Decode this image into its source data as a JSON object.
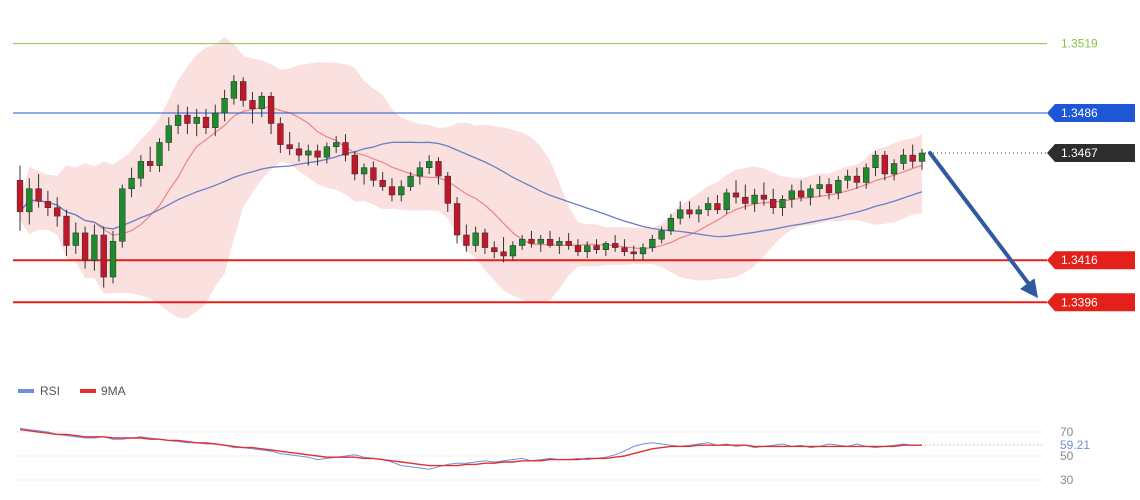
{
  "chart_data": [
    {
      "type": "candlestick",
      "title": "",
      "ylim": [
        1.336,
        1.3535
      ],
      "levels": [
        {
          "value": 1.3519,
          "label": "1.3519",
          "style": "green-line"
        },
        {
          "value": 1.3486,
          "label": "1.3486",
          "style": "blue-line"
        },
        {
          "value": 1.3467,
          "label": "1.3467",
          "style": "current-price"
        },
        {
          "value": 1.3416,
          "label": "1.3416",
          "style": "red-line"
        },
        {
          "value": 1.3396,
          "label": "1.3396",
          "style": "red-line"
        }
      ],
      "arrow": {
        "from_price": 1.3467,
        "to_price": 1.3398,
        "direction": "down"
      },
      "candles_ohlc": [
        [
          1.3454,
          1.3461,
          1.343,
          1.3439
        ],
        [
          1.3439,
          1.3455,
          1.3433,
          1.345
        ],
        [
          1.345,
          1.3457,
          1.3441,
          1.3444
        ],
        [
          1.3444,
          1.3449,
          1.3437,
          1.3441
        ],
        [
          1.3441,
          1.3446,
          1.3432,
          1.3437
        ],
        [
          1.3437,
          1.344,
          1.3418,
          1.3423
        ],
        [
          1.3423,
          1.3434,
          1.3419,
          1.3429
        ],
        [
          1.3429,
          1.3432,
          1.3412,
          1.3416
        ],
        [
          1.3416,
          1.3433,
          1.3411,
          1.3428
        ],
        [
          1.3428,
          1.3432,
          1.3403,
          1.3408
        ],
        [
          1.3408,
          1.343,
          1.3405,
          1.3425
        ],
        [
          1.3425,
          1.3452,
          1.3422,
          1.345
        ],
        [
          1.345,
          1.346,
          1.3446,
          1.3455
        ],
        [
          1.3455,
          1.3466,
          1.3451,
          1.3463
        ],
        [
          1.3463,
          1.347,
          1.3458,
          1.3461
        ],
        [
          1.3461,
          1.3474,
          1.3458,
          1.3472
        ],
        [
          1.3472,
          1.3484,
          1.3468,
          1.348
        ],
        [
          1.348,
          1.349,
          1.3476,
          1.3485
        ],
        [
          1.3485,
          1.3489,
          1.3476,
          1.3481
        ],
        [
          1.3481,
          1.3488,
          1.3475,
          1.3484
        ],
        [
          1.3484,
          1.3488,
          1.3476,
          1.3479
        ],
        [
          1.3479,
          1.349,
          1.3475,
          1.3486
        ],
        [
          1.3486,
          1.3497,
          1.3482,
          1.3493
        ],
        [
          1.3493,
          1.3504,
          1.349,
          1.3501
        ],
        [
          1.3501,
          1.3503,
          1.3489,
          1.3492
        ],
        [
          1.3492,
          1.3496,
          1.3481,
          1.3488
        ],
        [
          1.3488,
          1.3496,
          1.3484,
          1.3494
        ],
        [
          1.3494,
          1.3496,
          1.3476,
          1.3481
        ],
        [
          1.3481,
          1.3484,
          1.3467,
          1.3471
        ],
        [
          1.3471,
          1.3477,
          1.3466,
          1.3469
        ],
        [
          1.3469,
          1.3472,
          1.3463,
          1.3466
        ],
        [
          1.3466,
          1.3471,
          1.3461,
          1.3468
        ],
        [
          1.3468,
          1.3471,
          1.3461,
          1.3465
        ],
        [
          1.3465,
          1.3472,
          1.3462,
          1.347
        ],
        [
          1.347,
          1.3475,
          1.3467,
          1.3472
        ],
        [
          1.3472,
          1.3476,
          1.3463,
          1.3466
        ],
        [
          1.3466,
          1.3468,
          1.3454,
          1.3457
        ],
        [
          1.3457,
          1.3462,
          1.3452,
          1.346
        ],
        [
          1.346,
          1.3463,
          1.3451,
          1.3454
        ],
        [
          1.3454,
          1.3458,
          1.3449,
          1.3451
        ],
        [
          1.3451,
          1.3455,
          1.3444,
          1.3447
        ],
        [
          1.3447,
          1.3454,
          1.3444,
          1.3451
        ],
        [
          1.3451,
          1.3458,
          1.3449,
          1.3456
        ],
        [
          1.3456,
          1.3463,
          1.3452,
          1.346
        ],
        [
          1.346,
          1.3466,
          1.3457,
          1.3463
        ],
        [
          1.3463,
          1.3465,
          1.3452,
          1.3456
        ],
        [
          1.3456,
          1.3458,
          1.3439,
          1.3443
        ],
        [
          1.3443,
          1.3446,
          1.3424,
          1.3428
        ],
        [
          1.3428,
          1.3433,
          1.342,
          1.3423
        ],
        [
          1.3423,
          1.3432,
          1.342,
          1.3429
        ],
        [
          1.3429,
          1.3431,
          1.3419,
          1.3422
        ],
        [
          1.3422,
          1.3425,
          1.3417,
          1.342
        ],
        [
          1.342,
          1.3427,
          1.3415,
          1.3418
        ],
        [
          1.3418,
          1.3425,
          1.3416,
          1.3423
        ],
        [
          1.3423,
          1.3428,
          1.3421,
          1.3426
        ],
        [
          1.3426,
          1.343,
          1.3422,
          1.3424
        ],
        [
          1.3424,
          1.3428,
          1.342,
          1.3426
        ],
        [
          1.3426,
          1.343,
          1.3422,
          1.3423
        ],
        [
          1.3423,
          1.3427,
          1.3419,
          1.3425
        ],
        [
          1.3425,
          1.3429,
          1.3421,
          1.3423
        ],
        [
          1.3423,
          1.3426,
          1.3418,
          1.342
        ],
        [
          1.342,
          1.3425,
          1.3417,
          1.3423
        ],
        [
          1.3423,
          1.3426,
          1.3419,
          1.3421
        ],
        [
          1.3421,
          1.3425,
          1.3418,
          1.3424
        ],
        [
          1.3424,
          1.3428,
          1.342,
          1.3422
        ],
        [
          1.3422,
          1.3426,
          1.3418,
          1.342
        ],
        [
          1.342,
          1.3423,
          1.3416,
          1.3419
        ],
        [
          1.3419,
          1.3424,
          1.3416,
          1.3422
        ],
        [
          1.3422,
          1.3428,
          1.342,
          1.3426
        ],
        [
          1.3426,
          1.3432,
          1.3424,
          1.343
        ],
        [
          1.343,
          1.3438,
          1.3428,
          1.3436
        ],
        [
          1.3436,
          1.3444,
          1.3433,
          1.344
        ],
        [
          1.344,
          1.3444,
          1.3436,
          1.3438
        ],
        [
          1.3438,
          1.3442,
          1.3434,
          1.344
        ],
        [
          1.344,
          1.3446,
          1.3437,
          1.3443
        ],
        [
          1.3443,
          1.3447,
          1.3438,
          1.344
        ],
        [
          1.344,
          1.345,
          1.3438,
          1.3448
        ],
        [
          1.3448,
          1.3454,
          1.3443,
          1.3446
        ],
        [
          1.3446,
          1.3452,
          1.344,
          1.3443
        ],
        [
          1.3443,
          1.345,
          1.3439,
          1.3447
        ],
        [
          1.3447,
          1.3453,
          1.3442,
          1.3445
        ],
        [
          1.3445,
          1.345,
          1.3438,
          1.3441
        ],
        [
          1.3441,
          1.3447,
          1.3437,
          1.3445
        ],
        [
          1.3445,
          1.3452,
          1.3441,
          1.3449
        ],
        [
          1.3449,
          1.3454,
          1.3444,
          1.3446
        ],
        [
          1.3446,
          1.3452,
          1.3442,
          1.345
        ],
        [
          1.345,
          1.3456,
          1.3446,
          1.3452
        ],
        [
          1.3452,
          1.3455,
          1.3445,
          1.3448
        ],
        [
          1.3448,
          1.3456,
          1.3445,
          1.3454
        ],
        [
          1.3454,
          1.3459,
          1.345,
          1.3456
        ],
        [
          1.3456,
          1.346,
          1.345,
          1.3453
        ],
        [
          1.3453,
          1.3462,
          1.345,
          1.346
        ],
        [
          1.346,
          1.3468,
          1.3456,
          1.3466
        ],
        [
          1.3466,
          1.3468,
          1.3454,
          1.3457
        ],
        [
          1.3457,
          1.3464,
          1.3454,
          1.3462
        ],
        [
          1.3462,
          1.3469,
          1.3459,
          1.3466
        ],
        [
          1.3466,
          1.3471,
          1.346,
          1.3463
        ],
        [
          1.3463,
          1.3469,
          1.3459,
          1.3467
        ]
      ],
      "overlays": [
        {
          "name": "bollinger-bands",
          "color": "#f7c6c6"
        },
        {
          "name": "short-ma",
          "color": "#ef8a8a"
        },
        {
          "name": "long-ma",
          "color": "#6b7fc4"
        }
      ]
    },
    {
      "type": "line",
      "legend": [
        {
          "name": "RSI",
          "color": "#6f8fe0"
        },
        {
          "name": "9MA",
          "color": "#e03030"
        }
      ],
      "ylim": [
        25,
        80
      ],
      "y_ticks": [
        {
          "value": 70,
          "label": "70"
        },
        {
          "value": 50,
          "label": "50"
        },
        {
          "value": 30,
          "label": "30"
        }
      ],
      "current": {
        "value": 59.21,
        "label": "59.21"
      },
      "series": [
        {
          "name": "RSI",
          "values": [
            73,
            72,
            71,
            70,
            68,
            67,
            66,
            65,
            65,
            66,
            64,
            64,
            65,
            66,
            65,
            64,
            63,
            62,
            61,
            61,
            60,
            60,
            59,
            57,
            57,
            56,
            55,
            54,
            52,
            51,
            50,
            49,
            47,
            48,
            49,
            50,
            51,
            49,
            48,
            47,
            45,
            42,
            41,
            40,
            39,
            41,
            43,
            44,
            44,
            45,
            46,
            45,
            46,
            47,
            48,
            46,
            47,
            48,
            47,
            47,
            48,
            47,
            48,
            49,
            51,
            54,
            58,
            60,
            61,
            60,
            59,
            58,
            59,
            60,
            61,
            59,
            60,
            58,
            59,
            57,
            58,
            59,
            60,
            58,
            59,
            57,
            58,
            60,
            59,
            58,
            60,
            58,
            57,
            58,
            59,
            60,
            59,
            59.21
          ]
        },
        {
          "name": "9MA",
          "values": [
            72,
            71,
            70,
            69,
            68,
            68,
            67,
            66,
            66,
            66,
            65,
            65,
            65,
            65,
            64,
            64,
            63,
            63,
            62,
            61,
            61,
            60,
            59,
            58,
            57,
            57,
            56,
            55,
            54,
            53,
            52,
            51,
            50,
            49,
            49,
            49,
            49,
            48,
            48,
            47,
            46,
            45,
            44,
            43,
            42,
            42,
            42,
            42,
            43,
            43,
            44,
            44,
            45,
            45,
            46,
            46,
            46,
            47,
            47,
            47,
            47,
            48,
            48,
            48,
            49,
            50,
            52,
            54,
            56,
            57,
            58,
            58,
            58,
            59,
            59,
            59,
            59,
            59,
            59,
            58,
            58,
            58,
            58,
            58,
            58,
            58,
            58,
            58,
            58,
            58,
            58,
            58,
            58,
            58,
            58,
            59,
            59,
            59
          ]
        }
      ]
    }
  ],
  "colors": {
    "green_level": "#8cc04a",
    "blue_level": "#1d57d6",
    "red_level": "#e32019",
    "current_price_badge": "#2d2d2d",
    "bull_candle": "#1f8a2e",
    "bear_candle": "#c0172b",
    "arrow": "#2f5aa0"
  }
}
